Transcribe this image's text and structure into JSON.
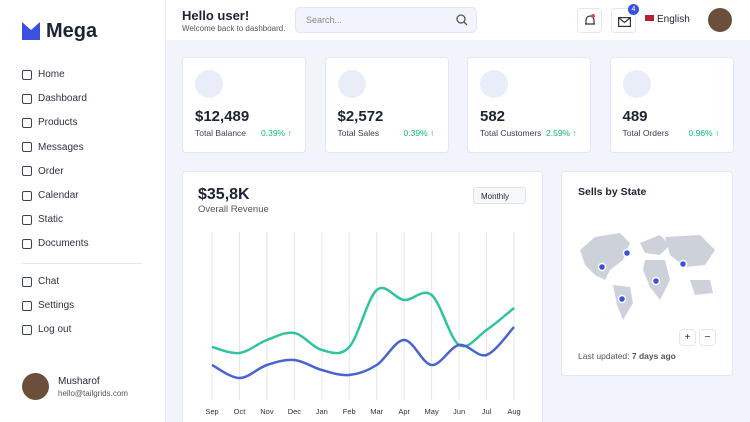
{
  "brand": "Mega",
  "nav": [
    "Home",
    "Dashboard",
    "Products",
    "Messages",
    "Order",
    "Calendar",
    "Static",
    "Documents"
  ],
  "nav_secondary": [
    "Chat",
    "Settings",
    "Log out"
  ],
  "user": {
    "name": "Musharof",
    "email": "hello@tailgrids.com"
  },
  "header": {
    "greeting": "Hello user!",
    "subtitle": "Welcome back to dashboard.",
    "search_placeholder": "Search...",
    "notification_count": "4",
    "language": "English"
  },
  "stats": [
    {
      "value": "$12,489",
      "label": "Total Balance",
      "change": "0.39%"
    },
    {
      "value": "$2,572",
      "label": "Total Sales",
      "change": "0.39%"
    },
    {
      "value": "582",
      "label": "Total Customers",
      "change": "2.59%"
    },
    {
      "value": "489",
      "label": "Total Orders",
      "change": "0.96%"
    }
  ],
  "revenue": {
    "value": "$35,8K",
    "label": "Overall Revenue",
    "period": "Monthly"
  },
  "chart_data": {
    "type": "line",
    "categories": [
      "Sep",
      "Oct",
      "Nov",
      "Dec",
      "Jan",
      "Feb",
      "Mar",
      "Apr",
      "May",
      "Jun",
      "Jul",
      "Aug"
    ],
    "series": [
      {
        "color": "#2ec4a0",
        "values": [
          53,
          47,
          60,
          67,
          50,
          53,
          110,
          100,
          105,
          55,
          70,
          92
        ]
      },
      {
        "color": "#4a63d0",
        "values": [
          35,
          22,
          35,
          40,
          30,
          25,
          35,
          60,
          35,
          55,
          45,
          73
        ]
      }
    ],
    "grid": true
  },
  "map": {
    "title": "Sells by State",
    "updated_label": "Last updated:",
    "updated_value": "7 days ago",
    "zoom_in": "+",
    "zoom_out": "−"
  }
}
